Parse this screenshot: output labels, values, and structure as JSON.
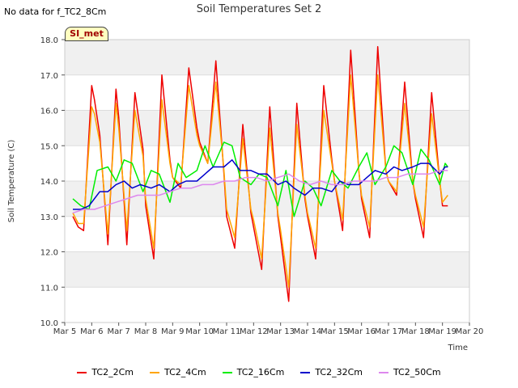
{
  "no_data_text": "No data for f_TC2_8Cm",
  "badge": "SI_met",
  "chart_data": {
    "type": "line",
    "title": "Soil Temperatures Set 2",
    "xlabel": "Time",
    "ylabel": "Soil Temperature (C)",
    "x_ticks": [
      "Mar 5",
      "Mar 6",
      "Mar 7",
      "Mar 8",
      "Mar 9",
      "Mar 10",
      "Mar 11",
      "Mar 12",
      "Mar 13",
      "Mar 14",
      "Mar 15",
      "Mar 16",
      "Mar 17",
      "Mar 18",
      "Mar 19",
      "Mar 20"
    ],
    "y_ticks": [
      "10.0",
      "11.0",
      "12.0",
      "13.0",
      "14.0",
      "15.0",
      "16.0",
      "17.0",
      "18.0"
    ],
    "xlim": [
      5,
      20
    ],
    "ylim": [
      10,
      18
    ],
    "grid": "horizontal bands",
    "legend_position": "bottom",
    "series": [
      {
        "name": "TC2_2Cm",
        "color": "#ee0000",
        "x": [
          5.3,
          5.5,
          5.7,
          6.0,
          6.1,
          6.3,
          6.6,
          6.9,
          7.0,
          7.3,
          7.6,
          7.9,
          8.0,
          8.3,
          8.6,
          8.9,
          9.0,
          9.3,
          9.6,
          9.9,
          10.0,
          10.3,
          10.6,
          10.9,
          11.0,
          11.3,
          11.6,
          11.9,
          12.0,
          12.3,
          12.6,
          12.9,
          13.0,
          13.3,
          13.6,
          13.9,
          14.0,
          14.3,
          14.6,
          14.9,
          15.0,
          15.3,
          15.6,
          15.9,
          16.0,
          16.3,
          16.6,
          16.9,
          17.0,
          17.3,
          17.6,
          17.9,
          18.0,
          18.3,
          18.6,
          18.9,
          19.0,
          19.2
        ],
        "y": [
          13.0,
          12.7,
          12.6,
          16.7,
          16.3,
          15.3,
          12.2,
          16.6,
          15.8,
          12.2,
          16.5,
          14.9,
          13.3,
          11.8,
          17.0,
          14.6,
          14.1,
          13.8,
          17.2,
          15.5,
          15.1,
          14.5,
          17.4,
          14.2,
          13.0,
          12.1,
          15.6,
          13.1,
          12.7,
          11.5,
          16.1,
          13.0,
          12.4,
          10.6,
          16.2,
          13.5,
          13.0,
          11.8,
          16.7,
          14.6,
          14.0,
          12.6,
          17.7,
          14.3,
          13.5,
          12.4,
          17.8,
          14.3,
          14.0,
          13.6,
          16.8,
          14.0,
          13.5,
          12.4,
          16.5,
          14.0,
          13.3,
          13.3
        ]
      },
      {
        "name": "TC2_4Cm",
        "color": "#ffa500",
        "x": [
          5.3,
          5.5,
          5.7,
          6.0,
          6.1,
          6.3,
          6.6,
          6.9,
          7.0,
          7.3,
          7.6,
          7.9,
          8.0,
          8.3,
          8.6,
          8.9,
          9.0,
          9.3,
          9.6,
          9.9,
          10.0,
          10.3,
          10.6,
          10.9,
          11.0,
          11.3,
          11.6,
          11.9,
          12.0,
          12.3,
          12.6,
          12.9,
          13.0,
          13.3,
          13.6,
          13.9,
          14.0,
          14.3,
          14.6,
          14.9,
          15.0,
          15.3,
          15.6,
          15.9,
          16.0,
          16.3,
          16.6,
          16.9,
          17.0,
          17.3,
          17.6,
          17.9,
          18.0,
          18.3,
          18.6,
          18.9,
          19.0,
          19.2
        ],
        "y": [
          13.1,
          12.8,
          12.8,
          16.1,
          15.9,
          15.1,
          12.5,
          16.2,
          15.5,
          12.6,
          16.0,
          14.7,
          13.5,
          12.1,
          16.3,
          14.5,
          14.1,
          13.9,
          16.7,
          15.3,
          15.0,
          14.5,
          16.8,
          14.3,
          13.2,
          12.4,
          15.2,
          13.2,
          12.9,
          11.8,
          15.5,
          13.1,
          12.6,
          11.0,
          15.6,
          13.6,
          13.1,
          12.1,
          16.0,
          14.5,
          14.0,
          12.9,
          17.0,
          14.3,
          13.6,
          12.7,
          17.0,
          14.3,
          14.0,
          13.7,
          16.2,
          14.0,
          13.6,
          12.7,
          15.9,
          14.0,
          13.4,
          13.6
        ]
      },
      {
        "name": "TC2_16Cm",
        "color": "#00ee00",
        "x": [
          5.3,
          5.6,
          5.9,
          6.2,
          6.6,
          6.9,
          7.2,
          7.5,
          7.9,
          8.2,
          8.5,
          8.9,
          9.2,
          9.5,
          9.9,
          10.2,
          10.5,
          10.9,
          11.2,
          11.5,
          11.9,
          12.2,
          12.5,
          12.9,
          13.2,
          13.5,
          13.9,
          14.2,
          14.5,
          14.9,
          15.2,
          15.5,
          15.9,
          16.2,
          16.5,
          16.9,
          17.2,
          17.5,
          17.9,
          18.2,
          18.5,
          18.9,
          19.1,
          19.2
        ],
        "y": [
          13.5,
          13.3,
          13.2,
          14.3,
          14.4,
          14.0,
          14.6,
          14.5,
          13.7,
          14.3,
          14.2,
          13.4,
          14.5,
          14.1,
          14.3,
          15.0,
          14.4,
          15.1,
          15.0,
          14.1,
          13.9,
          14.2,
          14.1,
          13.3,
          14.3,
          13.0,
          14.0,
          13.8,
          13.3,
          14.3,
          14.0,
          13.8,
          14.4,
          14.8,
          13.9,
          14.4,
          15.0,
          14.8,
          13.9,
          14.9,
          14.6,
          13.9,
          14.5,
          14.4
        ]
      },
      {
        "name": "TC2_32Cm",
        "color": "#0000cc",
        "x": [
          5.3,
          5.6,
          5.9,
          6.3,
          6.6,
          6.9,
          7.2,
          7.5,
          7.8,
          8.2,
          8.5,
          8.9,
          9.2,
          9.5,
          9.9,
          10.2,
          10.5,
          10.9,
          11.2,
          11.5,
          11.9,
          12.2,
          12.5,
          12.9,
          13.2,
          13.5,
          13.9,
          14.2,
          14.5,
          14.9,
          15.2,
          15.5,
          15.9,
          16.2,
          16.5,
          16.9,
          17.2,
          17.5,
          17.9,
          18.2,
          18.5,
          18.9,
          19.1,
          19.2
        ],
        "y": [
          13.2,
          13.2,
          13.3,
          13.7,
          13.7,
          13.9,
          14.0,
          13.8,
          13.9,
          13.8,
          13.9,
          13.7,
          13.9,
          14.0,
          14.0,
          14.2,
          14.4,
          14.4,
          14.6,
          14.3,
          14.3,
          14.2,
          14.2,
          13.9,
          14.0,
          13.8,
          13.6,
          13.8,
          13.8,
          13.7,
          14.0,
          13.9,
          13.9,
          14.1,
          14.3,
          14.2,
          14.4,
          14.3,
          14.4,
          14.5,
          14.5,
          14.2,
          14.4,
          14.4
        ]
      },
      {
        "name": "TC2_50Cm",
        "color": "#dd88ee",
        "x": [
          5.3,
          5.7,
          6.1,
          6.5,
          6.9,
          7.3,
          7.7,
          8.1,
          8.5,
          8.9,
          9.3,
          9.7,
          10.1,
          10.5,
          10.9,
          11.3,
          11.7,
          12.1,
          12.5,
          12.9,
          13.3,
          13.7,
          14.1,
          14.5,
          14.9,
          15.3,
          15.7,
          16.1,
          16.5,
          16.9,
          17.3,
          17.7,
          18.1,
          18.5,
          18.9,
          19.2
        ],
        "y": [
          13.1,
          13.2,
          13.2,
          13.3,
          13.4,
          13.5,
          13.6,
          13.6,
          13.6,
          13.7,
          13.8,
          13.8,
          13.9,
          13.9,
          14.0,
          14.0,
          14.1,
          14.1,
          14.0,
          14.1,
          14.2,
          14.0,
          13.9,
          14.0,
          13.9,
          13.9,
          14.0,
          14.0,
          14.0,
          14.1,
          14.1,
          14.2,
          14.2,
          14.2,
          14.3,
          14.3
        ]
      }
    ]
  }
}
